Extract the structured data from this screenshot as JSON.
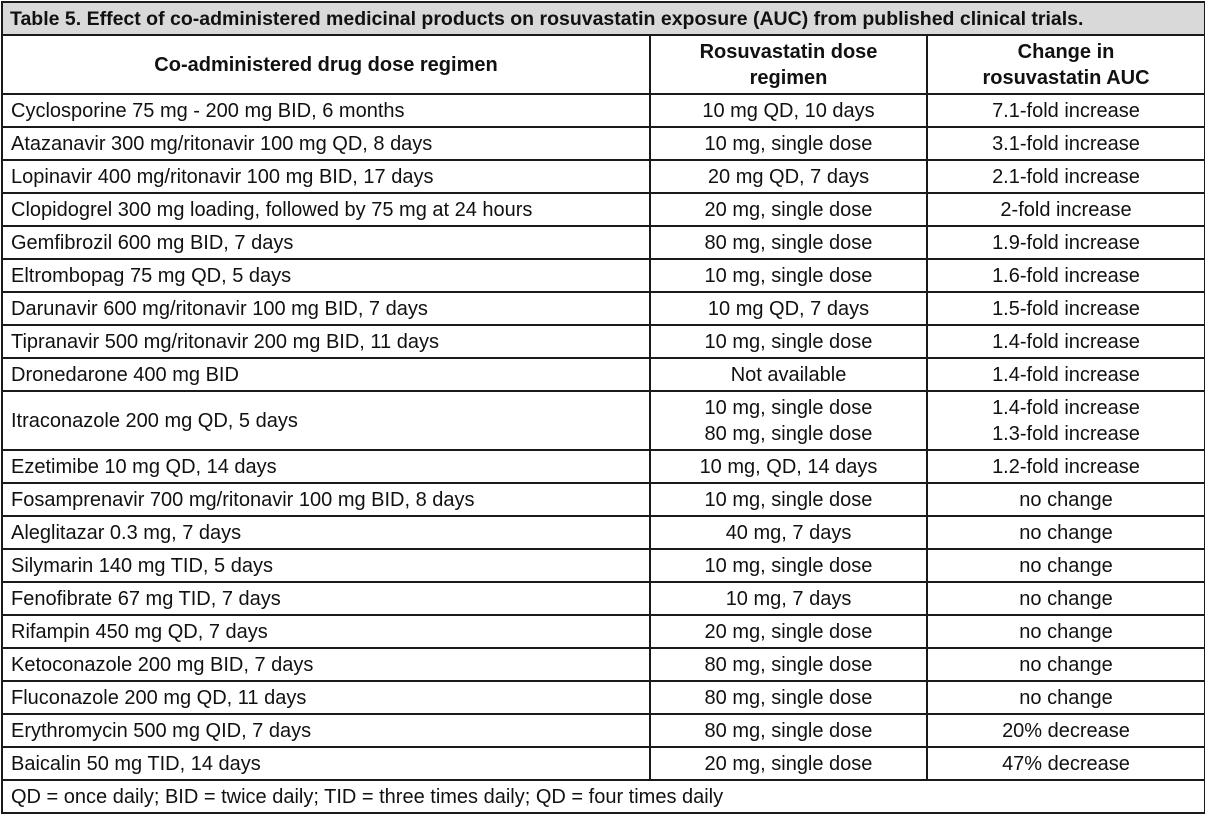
{
  "caption": "Table 5. Effect of co-administered medicinal products on rosuvastatin exposure (AUC) from published clinical trials.",
  "headers": {
    "drug": "Co-administered drug dose regimen",
    "dose_line1": "Rosuvastatin dose",
    "dose_line2": "regimen",
    "change_line1": "Change in",
    "change_line2": "rosuvastatin AUC"
  },
  "rows": [
    {
      "drug": "Cyclosporine 75 mg - 200 mg BID, 6 months",
      "dose": [
        "10 mg QD, 10 days"
      ],
      "change": [
        "7.1-fold increase"
      ]
    },
    {
      "drug": "Atazanavir 300 mg/ritonavir 100 mg QD, 8 days",
      "dose": [
        "10 mg, single dose"
      ],
      "change": [
        "3.1-fold increase"
      ]
    },
    {
      "drug": "Lopinavir 400 mg/ritonavir 100 mg BID, 17 days",
      "dose": [
        "20 mg QD, 7 days"
      ],
      "change": [
        "2.1-fold increase"
      ]
    },
    {
      "drug": "Clopidogrel 300 mg loading, followed by 75 mg at 24 hours",
      "dose": [
        "20 mg, single dose"
      ],
      "change": [
        "2-fold increase"
      ]
    },
    {
      "drug": "Gemfibrozil 600 mg BID, 7 days",
      "dose": [
        "80 mg, single dose"
      ],
      "change": [
        "1.9-fold increase"
      ]
    },
    {
      "drug": "Eltrombopag 75 mg QD, 5 days",
      "dose": [
        "10 mg, single dose"
      ],
      "change": [
        "1.6-fold increase"
      ]
    },
    {
      "drug": "Darunavir 600 mg/ritonavir 100 mg BID, 7 days",
      "dose": [
        "10 mg QD, 7 days"
      ],
      "change": [
        "1.5-fold increase"
      ]
    },
    {
      "drug": "Tipranavir 500 mg/ritonavir 200 mg BID, 11 days",
      "dose": [
        "10 mg, single dose"
      ],
      "change": [
        "1.4-fold increase"
      ]
    },
    {
      "drug": "Dronedarone 400 mg BID",
      "dose": [
        "Not available"
      ],
      "change": [
        "1.4-fold increase"
      ]
    },
    {
      "drug": "Itraconazole 200 mg QD, 5 days",
      "dose": [
        "10 mg, single dose",
        "80 mg, single dose"
      ],
      "change": [
        "1.4-fold increase",
        "1.3-fold increase"
      ]
    },
    {
      "drug": "Ezetimibe 10 mg QD, 14 days",
      "dose": [
        "10 mg, QD, 14 days"
      ],
      "change": [
        "1.2-fold increase"
      ]
    },
    {
      "drug": "Fosamprenavir 700 mg/ritonavir 100 mg BID, 8 days",
      "dose": [
        "10 mg, single dose"
      ],
      "change": [
        "no change"
      ]
    },
    {
      "drug": "Aleglitazar 0.3 mg, 7 days",
      "dose": [
        "40 mg, 7 days"
      ],
      "change": [
        "no change"
      ]
    },
    {
      "drug": "Silymarin 140 mg TID, 5 days",
      "dose": [
        "10 mg, single dose"
      ],
      "change": [
        "no change"
      ]
    },
    {
      "drug": "Fenofibrate 67 mg TID, 7 days",
      "dose": [
        "10 mg, 7 days"
      ],
      "change": [
        "no change"
      ]
    },
    {
      "drug": "Rifampin 450 mg QD, 7 days",
      "dose": [
        "20 mg, single dose"
      ],
      "change": [
        "no change"
      ]
    },
    {
      "drug": "Ketoconazole 200 mg BID, 7 days",
      "dose": [
        "80 mg, single dose"
      ],
      "change": [
        "no change"
      ]
    },
    {
      "drug": "Fluconazole 200 mg QD, 11 days",
      "dose": [
        "80 mg, single dose"
      ],
      "change": [
        "no change"
      ]
    },
    {
      "drug": "Erythromycin 500 mg QID, 7 days",
      "dose": [
        "80 mg, single dose"
      ],
      "change": [
        "20% decrease"
      ]
    },
    {
      "drug": "Baicalin 50 mg TID, 14 days",
      "dose": [
        "20 mg, single dose"
      ],
      "change": [
        "47% decrease"
      ]
    }
  ],
  "footnote": "QD = once daily; BID = twice daily; TID = three times daily; QD = four times daily",
  "colors": {
    "caption_background": "#d9d9d9",
    "border": "#1a1a1a",
    "text": "#111111"
  }
}
